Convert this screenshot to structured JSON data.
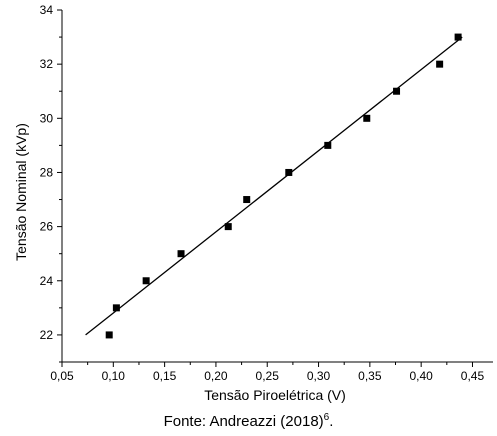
{
  "chart_data": {
    "type": "scatter",
    "xlabel": "Tensão Piroelétrica (V)",
    "ylabel": "Tensão Nominal (kVp)",
    "xlim": [
      0.05,
      0.47
    ],
    "ylim": [
      21,
      34
    ],
    "x_ticks": [
      "0,05",
      "0,10",
      "0,15",
      "0,20",
      "0,25",
      "0,30",
      "0,35",
      "0,40",
      "0,45"
    ],
    "y_ticks": [
      "22",
      "24",
      "26",
      "28",
      "30",
      "32",
      "34"
    ],
    "x_tick_values": [
      0.05,
      0.1,
      0.15,
      0.2,
      0.25,
      0.3,
      0.35,
      0.4,
      0.45
    ],
    "y_tick_values": [
      22,
      24,
      26,
      28,
      30,
      32,
      34
    ],
    "points": [
      {
        "x": 0.096,
        "y": 22
      },
      {
        "x": 0.103,
        "y": 23
      },
      {
        "x": 0.132,
        "y": 24
      },
      {
        "x": 0.166,
        "y": 25
      },
      {
        "x": 0.212,
        "y": 26
      },
      {
        "x": 0.23,
        "y": 27
      },
      {
        "x": 0.271,
        "y": 28
      },
      {
        "x": 0.309,
        "y": 29
      },
      {
        "x": 0.347,
        "y": 30
      },
      {
        "x": 0.376,
        "y": 31
      },
      {
        "x": 0.418,
        "y": 32
      },
      {
        "x": 0.436,
        "y": 33
      }
    ],
    "fit_line": {
      "x1": 0.073,
      "y1": 22.0,
      "x2": 0.44,
      "y2": 33.0
    },
    "marker_color": "#000000",
    "line_color": "#000000",
    "grid": false
  },
  "caption": {
    "text": "Fonte: Andreazzi (2018)",
    "superscript": "6",
    "suffix": "."
  }
}
